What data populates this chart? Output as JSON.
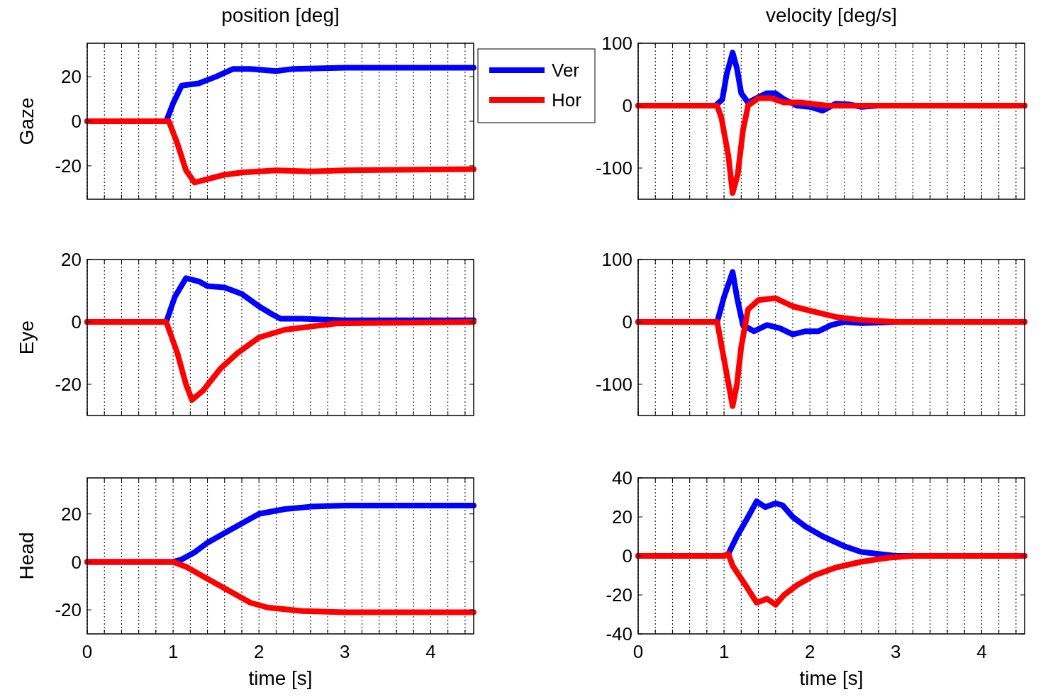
{
  "chart_data": [
    {
      "type": "line",
      "title": "position [deg]",
      "ylabel": "Gaze",
      "xlim": [
        0,
        4.5
      ],
      "ylim": [
        -35,
        35
      ],
      "yticks": [
        -20,
        0,
        20
      ],
      "xticks": [
        0,
        {
          "value": 0.2,
          "label": null
        },
        {
          "value": 0.4,
          "label": null
        },
        {
          "value": 0.6,
          "label": null
        },
        {
          "value": 0.8,
          "label": null
        },
        1,
        {
          "value": 1.2,
          "label": null
        },
        {
          "value": 1.4,
          "label": null
        },
        {
          "value": 1.6,
          "label": null
        },
        {
          "value": 1.8,
          "label": null
        },
        2,
        {
          "value": 2.2,
          "label": null
        },
        {
          "value": 2.4,
          "label": null
        },
        {
          "value": 2.6,
          "label": null
        },
        {
          "value": 2.8,
          "label": null
        },
        3,
        {
          "value": 3.2,
          "label": null
        },
        {
          "value": 3.4,
          "label": null
        },
        {
          "value": 3.6,
          "label": null
        },
        {
          "value": 3.8,
          "label": null
        },
        4,
        {
          "value": 4.2,
          "label": null
        },
        {
          "value": 4.4,
          "label": null
        }
      ],
      "grid": "x",
      "tick_labels": "y",
      "legend": "top right",
      "series": [
        {
          "name": "Ver",
          "color": "#0000ff",
          "x": [
            0,
            0.92,
            1.0,
            1.1,
            1.3,
            1.5,
            1.7,
            1.9,
            2.2,
            2.4,
            3.0,
            4.5
          ],
          "values": [
            0,
            0,
            8,
            16,
            17,
            20,
            23.5,
            23.5,
            22.5,
            23.5,
            24,
            24
          ]
        },
        {
          "name": "Hor",
          "color": "#ff0000",
          "x": [
            0,
            0.95,
            1.05,
            1.15,
            1.25,
            1.4,
            1.6,
            1.8,
            2.2,
            2.6,
            3.0,
            4.5
          ],
          "values": [
            0,
            0,
            -10,
            -22,
            -27.5,
            -26,
            -24,
            -23,
            -22,
            -22.5,
            -22,
            -21.5
          ]
        }
      ]
    },
    {
      "type": "line",
      "title": "velocity [deg/s]",
      "xlim": [
        0,
        4.5
      ],
      "ylim": [
        -150,
        100
      ],
      "yticks": [
        -100,
        0,
        100
      ],
      "xticks": [
        0,
        {
          "value": 0.2,
          "label": null
        },
        {
          "value": 0.4,
          "label": null
        },
        {
          "value": 0.6,
          "label": null
        },
        {
          "value": 0.8,
          "label": null
        },
        1,
        {
          "value": 1.2,
          "label": null
        },
        {
          "value": 1.4,
          "label": null
        },
        {
          "value": 1.6,
          "label": null
        },
        {
          "value": 1.8,
          "label": null
        },
        2,
        {
          "value": 2.2,
          "label": null
        },
        {
          "value": 2.4,
          "label": null
        },
        {
          "value": 2.6,
          "label": null
        },
        {
          "value": 2.8,
          "label": null
        },
        3,
        {
          "value": 3.2,
          "label": null
        },
        {
          "value": 3.4,
          "label": null
        },
        {
          "value": 3.6,
          "label": null
        },
        {
          "value": 3.8,
          "label": null
        },
        4,
        {
          "value": 4.2,
          "label": null
        },
        {
          "value": 4.4,
          "label": null
        }
      ],
      "grid": "x",
      "tick_labels": "y",
      "series": [
        {
          "color": "#0000ff",
          "x": [
            0,
            0.9,
            0.98,
            1.03,
            1.1,
            1.15,
            1.2,
            1.28,
            1.35,
            1.5,
            1.6,
            1.7,
            1.85,
            2.0,
            2.15,
            2.3,
            2.45,
            2.6,
            2.8,
            4.5
          ],
          "values": [
            0,
            0,
            10,
            50,
            85,
            60,
            20,
            5,
            10,
            20,
            20,
            10,
            0,
            -2,
            -8,
            3,
            2,
            -2,
            0,
            0
          ]
        },
        {
          "color": "#ff0000",
          "x": [
            0,
            0.92,
            0.97,
            1.05,
            1.1,
            1.16,
            1.22,
            1.28,
            1.4,
            1.55,
            1.7,
            1.9,
            2.2,
            4.5
          ],
          "values": [
            0,
            0,
            -20,
            -80,
            -140,
            -110,
            -40,
            0,
            12,
            12,
            5,
            5,
            0,
            0
          ]
        }
      ]
    },
    {
      "type": "line",
      "ylabel": "Eye",
      "xlim": [
        0,
        4.5
      ],
      "ylim": [
        -30,
        20
      ],
      "yticks": [
        -20,
        0,
        20
      ],
      "xticks": [
        0,
        {
          "value": 0.2,
          "label": null
        },
        {
          "value": 0.4,
          "label": null
        },
        {
          "value": 0.6,
          "label": null
        },
        {
          "value": 0.8,
          "label": null
        },
        1,
        {
          "value": 1.2,
          "label": null
        },
        {
          "value": 1.4,
          "label": null
        },
        {
          "value": 1.6,
          "label": null
        },
        {
          "value": 1.8,
          "label": null
        },
        2,
        {
          "value": 2.2,
          "label": null
        },
        {
          "value": 2.4,
          "label": null
        },
        {
          "value": 2.6,
          "label": null
        },
        {
          "value": 2.8,
          "label": null
        },
        3,
        {
          "value": 3.2,
          "label": null
        },
        {
          "value": 3.4,
          "label": null
        },
        {
          "value": 3.6,
          "label": null
        },
        {
          "value": 3.8,
          "label": null
        },
        4,
        {
          "value": 4.2,
          "label": null
        },
        {
          "value": 4.4,
          "label": null
        }
      ],
      "grid": "x",
      "tick_labels": "y",
      "series": [
        {
          "color": "#0000ff",
          "x": [
            0,
            0.92,
            1.02,
            1.15,
            1.3,
            1.4,
            1.6,
            1.8,
            2.0,
            2.15,
            2.25,
            2.5,
            3.0,
            4.5
          ],
          "values": [
            0,
            0,
            8,
            14,
            13,
            11.5,
            11,
            9,
            5,
            2.5,
            1,
            1,
            0.5,
            0.5
          ]
        },
        {
          "color": "#ff0000",
          "x": [
            0,
            0.92,
            1.05,
            1.15,
            1.22,
            1.35,
            1.55,
            1.75,
            2.0,
            2.3,
            2.6,
            2.9,
            4.5
          ],
          "values": [
            0,
            0,
            -10,
            -20,
            -25,
            -22,
            -15,
            -10,
            -5,
            -2.5,
            -1.5,
            -0.5,
            0
          ]
        }
      ]
    },
    {
      "type": "line",
      "xlim": [
        0,
        4.5
      ],
      "ylim": [
        -150,
        100
      ],
      "yticks": [
        -100,
        0,
        100
      ],
      "xticks": [
        0,
        {
          "value": 0.2,
          "label": null
        },
        {
          "value": 0.4,
          "label": null
        },
        {
          "value": 0.6,
          "label": null
        },
        {
          "value": 0.8,
          "label": null
        },
        1,
        {
          "value": 1.2,
          "label": null
        },
        {
          "value": 1.4,
          "label": null
        },
        {
          "value": 1.6,
          "label": null
        },
        {
          "value": 1.8,
          "label": null
        },
        2,
        {
          "value": 2.2,
          "label": null
        },
        {
          "value": 2.4,
          "label": null
        },
        {
          "value": 2.6,
          "label": null
        },
        {
          "value": 2.8,
          "label": null
        },
        3,
        {
          "value": 3.2,
          "label": null
        },
        {
          "value": 3.4,
          "label": null
        },
        {
          "value": 3.6,
          "label": null
        },
        {
          "value": 3.8,
          "label": null
        },
        4,
        {
          "value": 4.2,
          "label": null
        },
        {
          "value": 4.4,
          "label": null
        }
      ],
      "grid": "x",
      "tick_labels": "y",
      "series": [
        {
          "color": "#0000ff",
          "x": [
            0,
            0.92,
            1.0,
            1.1,
            1.15,
            1.22,
            1.35,
            1.5,
            1.65,
            1.8,
            1.95,
            2.1,
            2.25,
            2.4,
            2.6,
            3.0,
            4.5
          ],
          "values": [
            0,
            0,
            40,
            80,
            40,
            -5,
            -15,
            -5,
            -10,
            -20,
            -15,
            -15,
            -5,
            0,
            -2,
            0,
            0
          ]
        },
        {
          "color": "#ff0000",
          "x": [
            0,
            0.92,
            1.0,
            1.1,
            1.15,
            1.2,
            1.28,
            1.4,
            1.6,
            1.8,
            2.0,
            2.3,
            2.6,
            3.0,
            4.5
          ],
          "values": [
            0,
            0,
            -60,
            -135,
            -100,
            -40,
            20,
            35,
            38,
            25,
            18,
            8,
            3,
            0,
            0
          ]
        }
      ]
    },
    {
      "type": "line",
      "ylabel": "Head",
      "xlabel": "time [s]",
      "xlim": [
        0,
        4.5
      ],
      "ylim": [
        -30,
        35
      ],
      "yticks": [
        -20,
        0,
        20
      ],
      "xticks": [
        0,
        {
          "value": 0.2,
          "label": null
        },
        {
          "value": 0.4,
          "label": null
        },
        {
          "value": 0.6,
          "label": null
        },
        {
          "value": 0.8,
          "label": null
        },
        1,
        {
          "value": 1.2,
          "label": null
        },
        {
          "value": 1.4,
          "label": null
        },
        {
          "value": 1.6,
          "label": null
        },
        {
          "value": 1.8,
          "label": null
        },
        2,
        {
          "value": 2.2,
          "label": null
        },
        {
          "value": 2.4,
          "label": null
        },
        {
          "value": 2.6,
          "label": null
        },
        {
          "value": 2.8,
          "label": null
        },
        3,
        {
          "value": 3.2,
          "label": null
        },
        {
          "value": 3.4,
          "label": null
        },
        {
          "value": 3.6,
          "label": null
        },
        {
          "value": 3.8,
          "label": null
        },
        4,
        {
          "value": 4.2,
          "label": null
        },
        {
          "value": 4.4,
          "label": null
        }
      ],
      "grid": "x",
      "series": [
        {
          "color": "#0000ff",
          "x": [
            0,
            1.0,
            1.1,
            1.25,
            1.4,
            1.6,
            1.8,
            2.0,
            2.3,
            2.6,
            3.0,
            4.5
          ],
          "values": [
            0,
            0,
            1,
            4,
            8,
            12,
            16,
            20,
            22,
            23,
            23.5,
            23.5
          ]
        },
        {
          "color": "#ff0000",
          "x": [
            0,
            1.0,
            1.15,
            1.3,
            1.5,
            1.7,
            1.9,
            2.1,
            2.5,
            3.0,
            4.5
          ],
          "values": [
            0,
            0,
            -2,
            -5,
            -9,
            -13,
            -17,
            -19,
            -20.5,
            -21,
            -21
          ]
        }
      ]
    },
    {
      "type": "line",
      "xlabel": "time [s]",
      "xlim": [
        0,
        4.5
      ],
      "ylim": [
        -40,
        40
      ],
      "yticks": [
        -40,
        -20,
        0,
        20,
        40
      ],
      "xticks": [
        0,
        {
          "value": 0.2,
          "label": null
        },
        {
          "value": 0.4,
          "label": null
        },
        {
          "value": 0.6,
          "label": null
        },
        {
          "value": 0.8,
          "label": null
        },
        1,
        {
          "value": 1.2,
          "label": null
        },
        {
          "value": 1.4,
          "label": null
        },
        {
          "value": 1.6,
          "label": null
        },
        {
          "value": 1.8,
          "label": null
        },
        2,
        {
          "value": 2.2,
          "label": null
        },
        {
          "value": 2.4,
          "label": null
        },
        {
          "value": 2.6,
          "label": null
        },
        {
          "value": 2.8,
          "label": null
        },
        3,
        {
          "value": 3.2,
          "label": null
        },
        {
          "value": 3.4,
          "label": null
        },
        {
          "value": 3.6,
          "label": null
        },
        {
          "value": 3.8,
          "label": null
        },
        4,
        {
          "value": 4.2,
          "label": null
        },
        {
          "value": 4.4,
          "label": null
        }
      ],
      "grid": "x",
      "series": [
        {
          "color": "#0000ff",
          "x": [
            0,
            1.0,
            1.05,
            1.15,
            1.28,
            1.38,
            1.48,
            1.6,
            1.68,
            1.8,
            1.95,
            2.15,
            2.4,
            2.6,
            2.8,
            3.0,
            4.5
          ],
          "values": [
            0,
            0,
            1,
            10,
            20,
            28,
            25,
            27,
            26,
            20,
            15,
            10,
            5,
            2,
            1,
            0,
            0
          ]
        },
        {
          "color": "#ff0000",
          "x": [
            0,
            1.0,
            1.05,
            1.1,
            1.25,
            1.38,
            1.5,
            1.6,
            1.7,
            1.85,
            2.05,
            2.3,
            2.6,
            2.9,
            3.2,
            4.5
          ],
          "values": [
            0,
            0,
            1,
            -5,
            -15,
            -24,
            -22,
            -25,
            -20,
            -15,
            -10,
            -6,
            -3,
            -1,
            0,
            0
          ]
        }
      ]
    }
  ]
}
